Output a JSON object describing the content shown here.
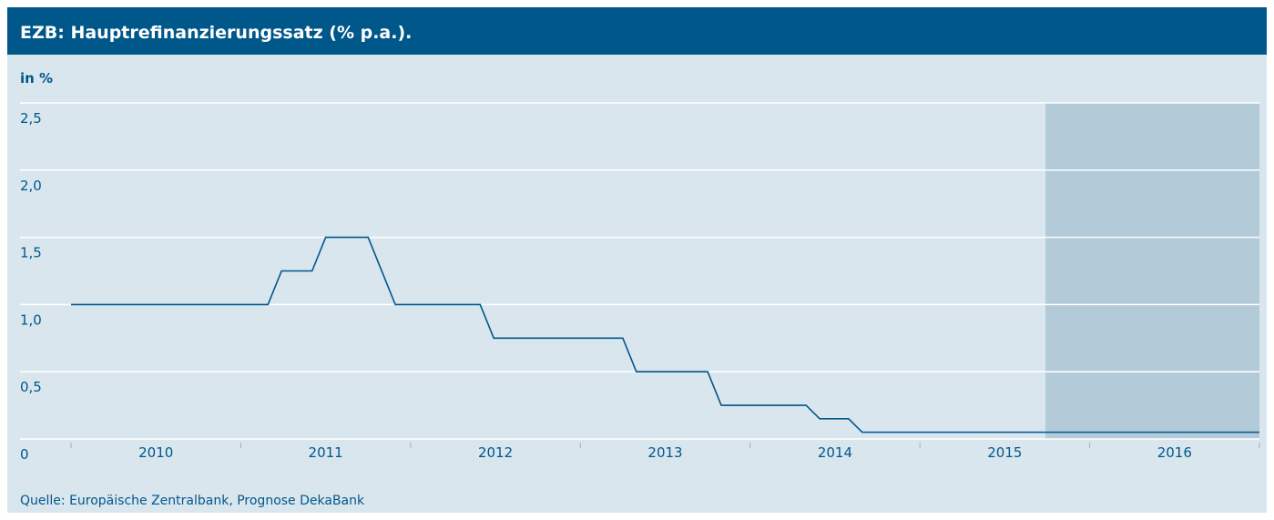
{
  "chart_data": {
    "type": "line",
    "title": "EZB: Hauptrefinanzierungssatz (% p.a.).",
    "y_axis_label": "in %",
    "source": "Quelle: Europäische Zentralbank, Prognose DekaBank",
    "categories": [
      "2010",
      "2011",
      "2012",
      "2013",
      "2014",
      "2015",
      "2016"
    ],
    "x": [
      2010.0,
      2011.16,
      2011.24,
      2011.42,
      2011.5,
      2011.75,
      2011.91,
      2012.41,
      2012.49,
      2013.25,
      2013.33,
      2013.75,
      2013.83,
      2014.33,
      2014.41,
      2014.58,
      2014.66,
      2017.0
    ],
    "values": [
      1.0,
      1.0,
      1.25,
      1.25,
      1.5,
      1.5,
      1.0,
      1.0,
      0.75,
      0.75,
      0.5,
      0.5,
      0.25,
      0.25,
      0.15,
      0.15,
      0.05,
      0.05
    ],
    "color": "#00578a",
    "forecast_start": 2015.74,
    "forecast_color": "#b3cad9",
    "xlim": [
      2010,
      2017
    ],
    "xticks": [
      2010,
      2011,
      2012,
      2013,
      2014,
      2015,
      2016,
      2017
    ],
    "ylim": [
      0,
      2.5
    ],
    "yticks": [
      0,
      {
        "value": 0.5,
        "label": "0,5"
      },
      {
        "value": 1.0,
        "label": "1,0"
      },
      {
        "value": 1.5,
        "label": "1,5"
      },
      {
        "value": 2.0,
        "label": "2,0"
      },
      {
        "value": 2.5,
        "label": "2,5"
      }
    ],
    "grid": true
  }
}
